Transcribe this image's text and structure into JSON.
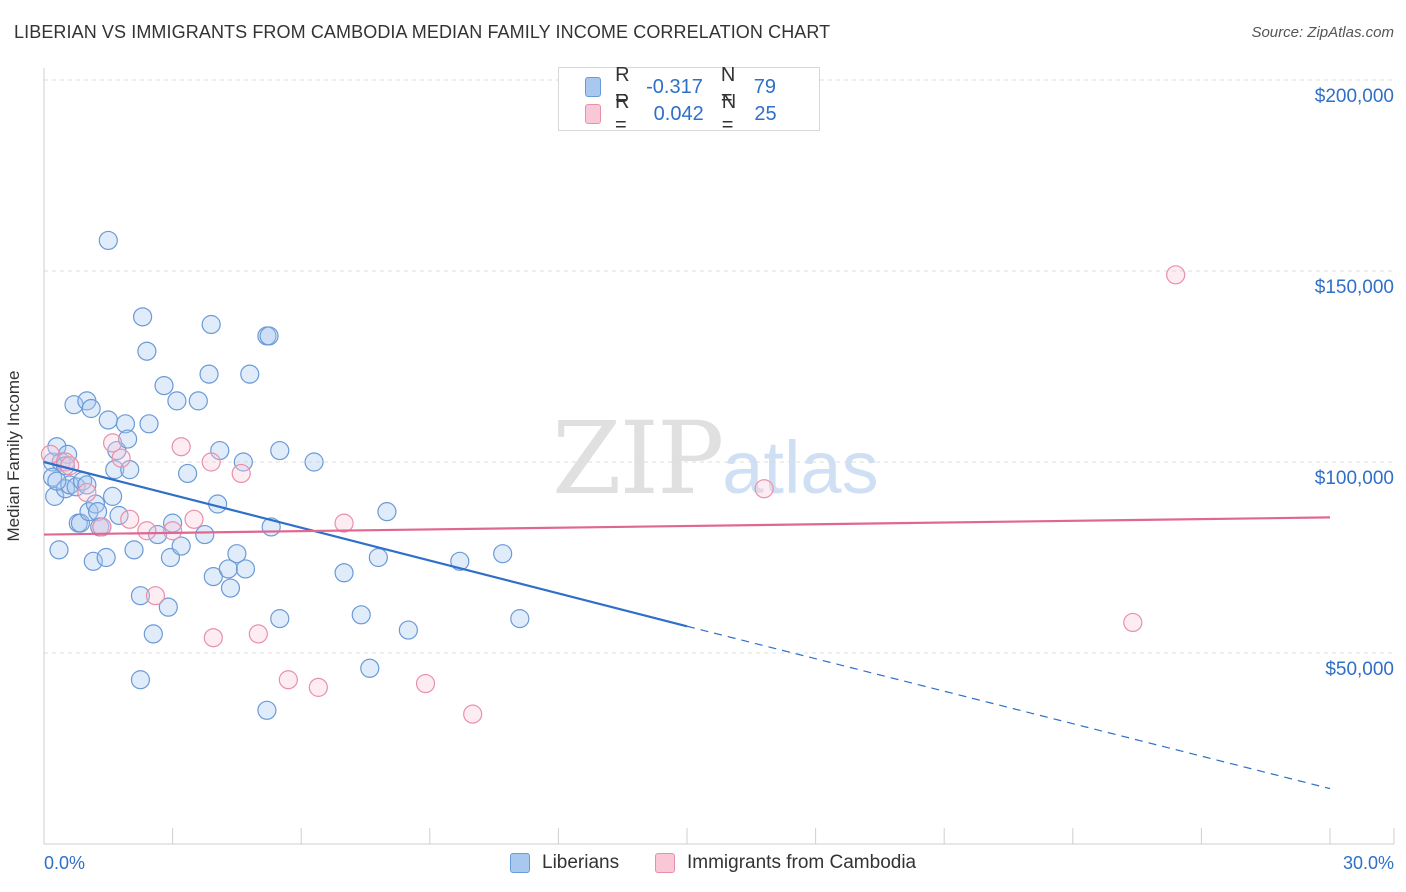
{
  "title": "LIBERIAN VS IMMIGRANTS FROM CAMBODIA MEDIAN FAMILY INCOME CORRELATION CHART",
  "source": "Source: ZipAtlas.com",
  "legend": {
    "r_label": "R =",
    "n_label": "N =",
    "rows": [
      {
        "r": "-0.317",
        "n": "79",
        "color": "#a8c8f0",
        "border": "#6a9ad8"
      },
      {
        "r": "0.042",
        "n": "25",
        "color": "#f8c8d6",
        "border": "#e890aa"
      }
    ]
  },
  "watermark": {
    "zip": "ZIP",
    "atlas": "atlas"
  },
  "colors": {
    "blue": "#2f6fc8",
    "blue_fill": "#a8c8f0",
    "pink": "#e06890",
    "pink_fill": "#f8c8d6"
  },
  "chart_data": {
    "type": "scatter",
    "xlabel": "",
    "ylabel": "Median Family Income",
    "x_tick_labels": [
      "0.0%",
      "30.0%"
    ],
    "y_tick_labels": [
      "$200,000",
      "$150,000",
      "$100,000",
      "$50,000"
    ],
    "xlim": [
      0,
      30
    ],
    "ylim": [
      0,
      205000
    ],
    "grid": true,
    "series": [
      {
        "name": "Liberians",
        "color": "#a8c8f0",
        "points": [
          [
            0.2,
            100000
          ],
          [
            0.3,
            104000
          ],
          [
            0.2,
            96000
          ],
          [
            0.25,
            91000
          ],
          [
            0.35,
            77000
          ],
          [
            0.4,
            100000
          ],
          [
            0.5,
            93000
          ],
          [
            0.6,
            94000
          ],
          [
            0.55,
            102000
          ],
          [
            0.7,
            115000
          ],
          [
            0.75,
            93500
          ],
          [
            0.8,
            84000
          ],
          [
            0.85,
            84000
          ],
          [
            0.9,
            95000
          ],
          [
            1.0,
            116000
          ],
          [
            1.05,
            87000
          ],
          [
            1.1,
            114000
          ],
          [
            1.15,
            74000
          ],
          [
            1.2,
            89000
          ],
          [
            1.25,
            87000
          ],
          [
            1.3,
            83000
          ],
          [
            1.35,
            83000
          ],
          [
            1.45,
            75000
          ],
          [
            1.5,
            111000
          ],
          [
            1.6,
            91000
          ],
          [
            1.65,
            98000
          ],
          [
            1.7,
            103000
          ],
          [
            1.75,
            86000
          ],
          [
            1.9,
            110000
          ],
          [
            1.95,
            106000
          ],
          [
            2.0,
            98000
          ],
          [
            2.1,
            77000
          ],
          [
            2.25,
            65000
          ],
          [
            2.3,
            138000
          ],
          [
            2.4,
            129000
          ],
          [
            2.45,
            110000
          ],
          [
            2.55,
            55000
          ],
          [
            2.65,
            81000
          ],
          [
            2.8,
            120000
          ],
          [
            2.9,
            62000
          ],
          [
            2.95,
            75000
          ],
          [
            3.0,
            84000
          ],
          [
            3.1,
            116000
          ],
          [
            3.2,
            78000
          ],
          [
            3.35,
            97000
          ],
          [
            3.6,
            116000
          ],
          [
            3.75,
            81000
          ],
          [
            3.85,
            123000
          ],
          [
            3.9,
            136000
          ],
          [
            3.95,
            70000
          ],
          [
            4.05,
            89000
          ],
          [
            4.1,
            103000
          ],
          [
            4.3,
            72000
          ],
          [
            4.35,
            67000
          ],
          [
            4.5,
            76000
          ],
          [
            4.65,
            100000
          ],
          [
            4.7,
            72000
          ],
          [
            4.8,
            123000
          ],
          [
            5.2,
            133000
          ],
          [
            5.25,
            133000
          ],
          [
            5.3,
            83000
          ],
          [
            5.5,
            103000
          ],
          [
            5.5,
            59000
          ],
          [
            6.3,
            100000
          ],
          [
            7.0,
            71000
          ],
          [
            7.4,
            60000
          ],
          [
            7.6,
            46000
          ],
          [
            7.8,
            75000
          ],
          [
            8.0,
            87000
          ],
          [
            8.5,
            56000
          ],
          [
            9.7,
            74000
          ],
          [
            10.7,
            76000
          ],
          [
            11.1,
            59000
          ],
          [
            1.5,
            158000
          ],
          [
            2.25,
            43000
          ],
          [
            5.2,
            35000
          ],
          [
            0.5,
            99000
          ],
          [
            1.0,
            94000
          ],
          [
            0.3,
            95000
          ]
        ]
      },
      {
        "name": "Immigrants from Cambodia",
        "color": "#f8c8d6",
        "points": [
          [
            0.15,
            102000
          ],
          [
            0.5,
            100000
          ],
          [
            0.6,
            99000
          ],
          [
            1.0,
            92000
          ],
          [
            1.35,
            83000
          ],
          [
            1.6,
            105000
          ],
          [
            1.8,
            101000
          ],
          [
            2.0,
            85000
          ],
          [
            2.4,
            82000
          ],
          [
            2.6,
            65000
          ],
          [
            3.0,
            82000
          ],
          [
            3.2,
            104000
          ],
          [
            3.5,
            85000
          ],
          [
            3.9,
            100000
          ],
          [
            3.95,
            54000
          ],
          [
            4.6,
            97000
          ],
          [
            5.0,
            55000
          ],
          [
            5.7,
            43000
          ],
          [
            6.4,
            41000
          ],
          [
            7.0,
            84000
          ],
          [
            8.9,
            42000
          ],
          [
            10.0,
            34000
          ],
          [
            16.8,
            93000
          ],
          [
            25.4,
            58000
          ],
          [
            26.4,
            149000
          ]
        ]
      }
    ],
    "trendlines": [
      {
        "series": "Liberians",
        "x": [
          0,
          15,
          30
        ],
        "y": [
          100000,
          57000,
          14500
        ],
        "solid_until_x": 15
      },
      {
        "series": "Immigrants from Cambodia",
        "x": [
          0,
          30
        ],
        "y": [
          81000,
          85500
        ]
      }
    ]
  },
  "bottom_legend": [
    {
      "label": "Liberians",
      "color": "#a8c8f0",
      "border": "#6a9ad8"
    },
    {
      "label": "Immigrants from Cambodia",
      "color": "#f8c8d6",
      "border": "#e890aa"
    }
  ]
}
